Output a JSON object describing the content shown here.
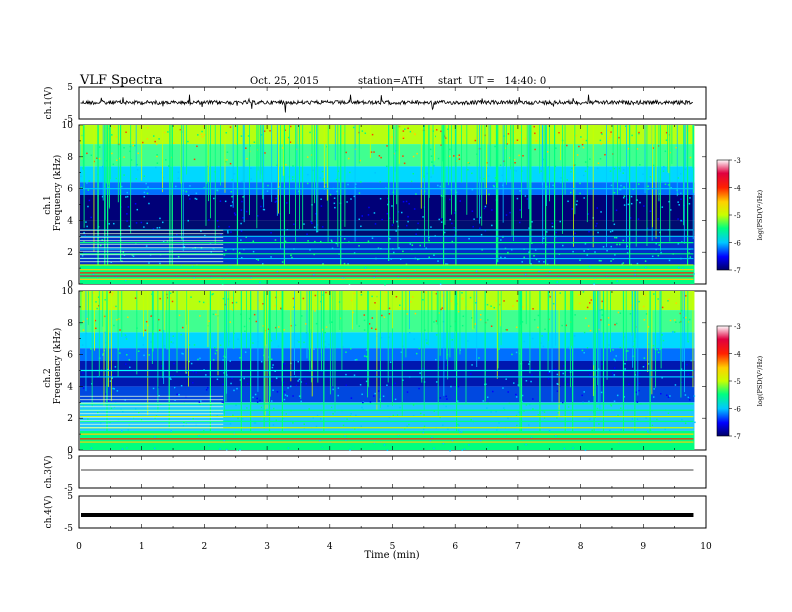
{
  "header": {
    "title": "VLF Spectra",
    "date": "Oct. 25, 2015",
    "station": "station=ATH",
    "start": "start  UT =   14:40: 0"
  },
  "chart_data": {
    "type": "heatmap",
    "title": "VLF Spectra",
    "xlabel": "Time (min)",
    "xlim": [
      0,
      10
    ],
    "x_ticks": [
      "0",
      "1",
      "2",
      "3",
      "4",
      "5",
      "6",
      "7",
      "8",
      "9",
      "10"
    ],
    "record_end_min": 9.8,
    "panels": [
      {
        "id": "ch1-waveform",
        "type": "line",
        "ylabel": "ch.1(V)",
        "ylim": [
          -5,
          5
        ],
        "y_ticks": [
          "5",
          "-5"
        ],
        "trace_level": 0.15
      },
      {
        "id": "ch1-spectrogram",
        "type": "heatmap",
        "ylabel_line1": "ch.1",
        "ylabel_line2": "Frequency (kHz)",
        "ylim": [
          0,
          10
        ],
        "y_ticks": [
          "0",
          "2",
          "4",
          "6",
          "8",
          "10"
        ]
      },
      {
        "id": "ch2-spectrogram",
        "type": "heatmap",
        "ylabel_line1": "ch.2",
        "ylabel_line2": "Frequency (kHz)",
        "ylim": [
          0,
          10
        ],
        "y_ticks": [
          "0",
          "2",
          "4",
          "6",
          "8",
          "10"
        ]
      },
      {
        "id": "ch3-waveform",
        "type": "line",
        "ylabel": "ch.3(V)",
        "ylim": [
          -5,
          5
        ],
        "y_ticks": [
          "5",
          "-5"
        ],
        "trace_level": 0.0
      },
      {
        "id": "ch4-waveform",
        "type": "line",
        "ylabel": "ch.4(V)",
        "ylim": [
          -5,
          5
        ],
        "y_ticks": [
          "5",
          "-5"
        ],
        "trace_level": 0.0
      }
    ],
    "colorbar": {
      "label": "log(PSD(V²/Hz)",
      "range": [
        -7,
        -3
      ],
      "ticks": [
        "-3",
        "-4",
        "-5",
        "-6",
        "-7"
      ],
      "colors": [
        "#000066",
        "#0000ff",
        "#00c8ff",
        "#00ff80",
        "#c8ff00",
        "#ffd000",
        "#ff2000",
        "#e00040",
        "#ffffff"
      ]
    }
  }
}
